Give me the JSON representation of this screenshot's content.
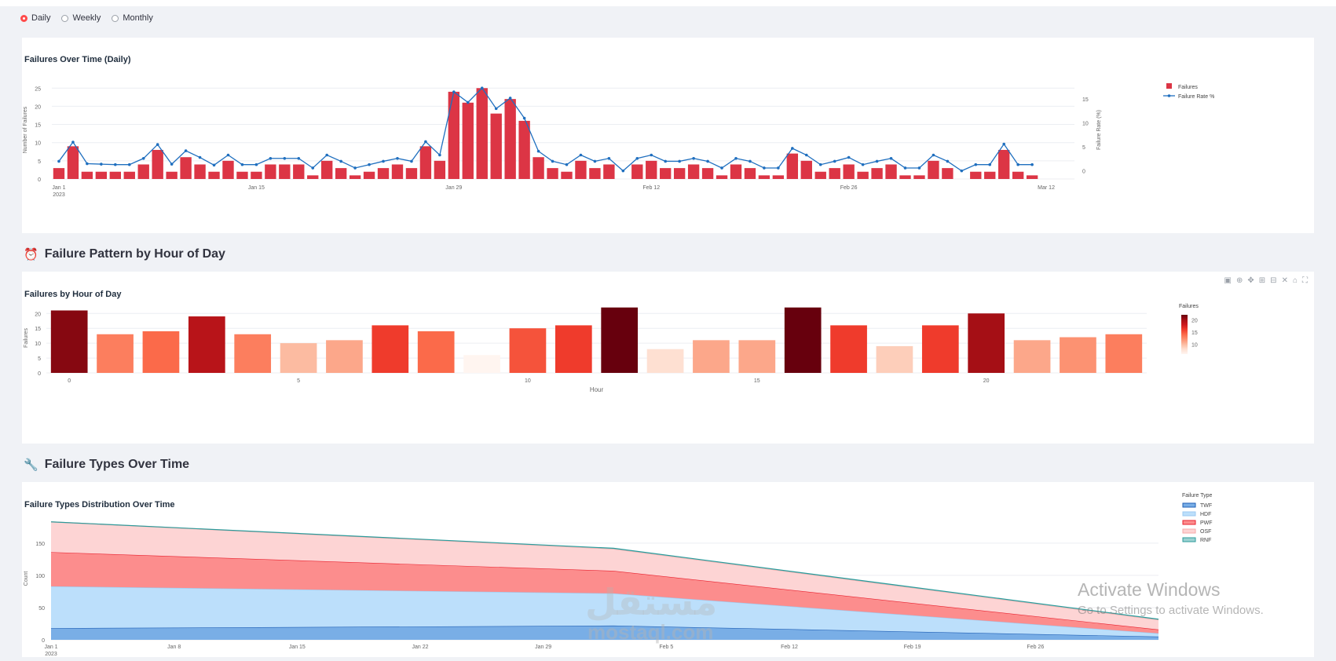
{
  "controls": {
    "options": [
      "Daily",
      "Weekly",
      "Monthly"
    ],
    "selected": 0
  },
  "sections": {
    "hour": {
      "icon": "⏰",
      "title": "Failure Pattern by Hour of Day"
    },
    "types": {
      "icon": "🔧",
      "title": "Failure Types Over Time"
    }
  },
  "toolbar": [
    "camera-icon",
    "zoom-icon",
    "pan-icon",
    "zoom-in-icon",
    "zoom-out-icon",
    "autoscale-icon",
    "home-icon",
    "fullscreen-icon"
  ],
  "watermark": {
    "line1": "Activate Windows",
    "line2": "Go to Settings to activate Windows.",
    "logo": "مستقل",
    "logo_sub": "mostaql.com"
  },
  "colors": {
    "accent": "#ff4b4b",
    "bar": "#dc3545",
    "line": "#1f6fbf"
  },
  "chart_data": [
    {
      "type": "bar",
      "title": "Failures Over Time (Daily)",
      "ylabel": "Number of Failures",
      "y2label": "Failure Rate (%)",
      "ylim": [
        0,
        27
      ],
      "y_ticks": [
        0,
        5,
        10,
        15,
        20,
        25
      ],
      "y2lim": [
        -1.7,
        18.8
      ],
      "y2_ticks": [
        0,
        5,
        10,
        15
      ],
      "x_start": "2023-01-01",
      "x_end": "2023-03-14",
      "x_ticks": [
        {
          "date": "2023-01-01",
          "label": "Jan 1",
          "sub": "2023"
        },
        {
          "date": "2023-01-15",
          "label": "Jan 15"
        },
        {
          "date": "2023-01-29",
          "label": "Jan 29"
        },
        {
          "date": "2023-02-12",
          "label": "Feb 12"
        },
        {
          "date": "2023-02-26",
          "label": "Feb 26"
        },
        {
          "date": "2023-03-12",
          "label": "Mar 12"
        }
      ],
      "legend": "right",
      "series": [
        {
          "name": "Failures",
          "kind": "bar",
          "values": [
            3,
            9,
            2,
            2,
            2,
            2,
            4,
            8,
            2,
            6,
            4,
            2,
            5,
            2,
            2,
            4,
            4,
            4,
            1,
            5,
            3,
            1,
            2,
            3,
            4,
            3,
            9,
            5,
            24,
            21,
            25,
            18,
            22,
            16,
            6,
            3,
            2,
            5,
            3,
            4,
            0,
            4,
            5,
            3,
            3,
            4,
            3,
            1,
            4,
            3,
            1,
            1,
            7,
            5,
            2,
            3,
            4,
            2,
            3,
            4,
            1,
            1,
            5,
            3,
            0,
            2,
            2,
            8,
            2,
            1
          ]
        },
        {
          "name": "Failure Rate %",
          "kind": "line",
          "values": [
            2,
            6,
            1.5,
            1.4,
            1.3,
            1.3,
            2.6,
            5.5,
            1.4,
            4.2,
            2.8,
            1.2,
            3.3,
            1.3,
            1.3,
            2.6,
            2.6,
            2.6,
            0.6,
            3.3,
            2,
            0.6,
            1.3,
            2,
            2.6,
            2,
            6.1,
            3.3,
            16.5,
            14.3,
            17.3,
            13,
            15.2,
            11,
            4.1,
            2,
            1.3,
            3.3,
            2,
            2.6,
            0,
            2.6,
            3.3,
            2,
            2,
            2.6,
            2,
            0.6,
            2.6,
            2,
            0.6,
            0.6,
            4.7,
            3.3,
            1.3,
            2,
            2.8,
            1.3,
            2,
            2.6,
            0.6,
            0.6,
            3.3,
            2,
            0,
            1.3,
            1.3,
            5.6,
            1.3,
            1.3
          ]
        }
      ]
    },
    {
      "type": "bar",
      "title": "Failures by Hour of Day",
      "xlabel": "Hour",
      "ylabel": "Failures",
      "ylim": [
        0,
        23.5
      ],
      "y_ticks": [
        0,
        5,
        10,
        15,
        20
      ],
      "x_ticks": [
        0,
        5,
        10,
        15,
        20
      ],
      "categories": [
        0,
        1,
        2,
        3,
        4,
        5,
        6,
        7,
        8,
        9,
        10,
        11,
        12,
        13,
        14,
        15,
        16,
        17,
        18,
        19,
        20,
        21,
        22,
        23
      ],
      "values": [
        21,
        13,
        14,
        19,
        13,
        10,
        11,
        16,
        14,
        6,
        15,
        16,
        22,
        8,
        11,
        11,
        22,
        16,
        9,
        16,
        20,
        11,
        12,
        13
      ],
      "colorscale": {
        "title": "Failures",
        "min": 6,
        "max": 22,
        "ticks": [
          10,
          15,
          20
        ]
      }
    },
    {
      "type": "area",
      "title": "Failure Types Distribution Over Time",
      "ylabel": "Count",
      "ylim": [
        0,
        190
      ],
      "y_ticks": [
        0,
        50,
        100,
        150
      ],
      "x_start": "2023-01-01",
      "x_end": "2023-03-05",
      "x": [
        "2023-01-01",
        "2023-02-02",
        "2023-03-05"
      ],
      "x_ticks": [
        {
          "date": "2023-01-01",
          "label": "Jan 1",
          "sub": "2023"
        },
        {
          "date": "2023-01-08",
          "label": "Jan 8"
        },
        {
          "date": "2023-01-15",
          "label": "Jan 15"
        },
        {
          "date": "2023-01-22",
          "label": "Jan 22"
        },
        {
          "date": "2023-01-29",
          "label": "Jan 29"
        },
        {
          "date": "2023-02-05",
          "label": "Feb 5"
        },
        {
          "date": "2023-02-12",
          "label": "Feb 12"
        },
        {
          "date": "2023-02-19",
          "label": "Feb 19"
        },
        {
          "date": "2023-02-26",
          "label": "Feb 26"
        }
      ],
      "legend_title": "Failure Type",
      "legend": "right",
      "series": [
        {
          "name": "TWF",
          "values": [
            18,
            22,
            5
          ],
          "fill": "#79aee6",
          "line": "#1f5fb5"
        },
        {
          "name": "HDF",
          "values": [
            65,
            50,
            5
          ],
          "fill": "#bcdffb",
          "line": "#9ccaf0"
        },
        {
          "name": "PWF",
          "values": [
            53,
            35,
            6
          ],
          "fill": "#fc8d8d",
          "line": "#e8202e"
        },
        {
          "name": "OSF",
          "values": [
            47,
            34,
            15
          ],
          "fill": "#fdd4d4",
          "line": "#f6a8a8"
        },
        {
          "name": "RNF",
          "values": [
            0,
            1,
            1
          ],
          "fill": "#9bd2d2",
          "line": "#2c9b9b"
        }
      ]
    }
  ]
}
